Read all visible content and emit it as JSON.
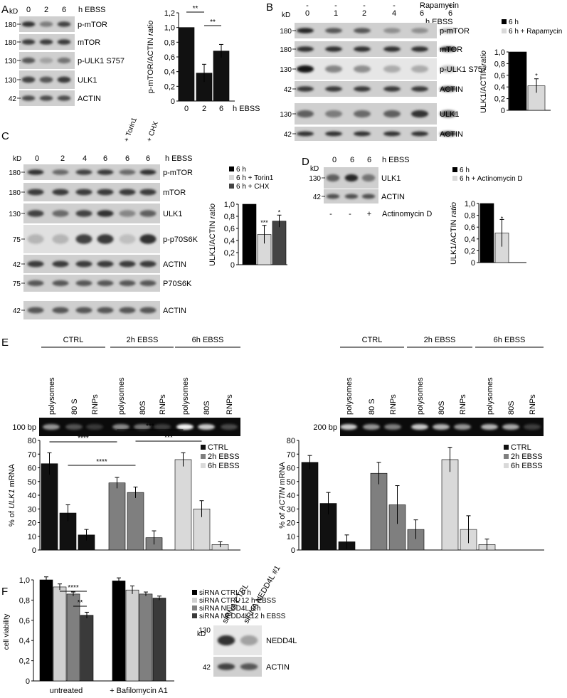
{
  "panelA": {
    "letter": "A",
    "kd": "kD",
    "lanes": [
      "0",
      "2",
      "6"
    ],
    "lane_header": "h EBSS",
    "markers": [
      "180",
      "180",
      "130",
      "130",
      "42"
    ],
    "blots": [
      "p-mTOR",
      "mTOR",
      "p-ULK1 S757",
      "ULK1",
      "ACTIN"
    ]
  },
  "panelB": {
    "letter": "B",
    "kd": "kD",
    "rapa_label": "Rapamycin",
    "rapa_marks": [
      "-",
      "-",
      "-",
      "-",
      "-",
      "+"
    ],
    "lanes": [
      "0",
      "1",
      "2",
      "4",
      "6",
      "6"
    ],
    "lane_header": "h EBSS",
    "markers": [
      "180",
      "180",
      "130",
      "42",
      "130",
      "42"
    ],
    "blots": [
      "p-mTOR",
      "mTOR",
      "p-ULK1 S757",
      "ACTIN",
      "ULK1",
      "ACTIN"
    ],
    "legend": [
      "6 h",
      "6 h + Rapamycin"
    ]
  },
  "panelC": {
    "letter": "C",
    "kd": "kD",
    "treat_labels": [
      "+ Torin1",
      "+ CHX"
    ],
    "lanes": [
      "0",
      "2",
      "4",
      "6",
      "6",
      "6"
    ],
    "lane_header": "h EBSS",
    "markers": [
      "180",
      "180",
      "130",
      "75",
      "42",
      "75",
      "42"
    ],
    "blots": [
      "p-mTOR",
      "mTOR",
      "ULK1",
      "p-p70S6K",
      "ACTIN",
      "P70S6K",
      "ACTIN"
    ],
    "legend": [
      "6 h",
      "6 h + Torin1",
      "6 h + CHX"
    ]
  },
  "panelD": {
    "letter": "D",
    "kd": "kD",
    "lanes": [
      "0",
      "6",
      "6"
    ],
    "lane_header": "h EBSS",
    "markers": [
      "130",
      "42"
    ],
    "blots": [
      "ULK1",
      "ACTIN"
    ],
    "actd_marks": [
      "-",
      "-",
      "+"
    ],
    "actd_label": "Actinomycin D",
    "legend": [
      "6 h",
      "6 h + Actinomycin D"
    ]
  },
  "panelE": {
    "letter": "E",
    "groups": [
      "CTRL",
      "2h EBSS",
      "6h EBSS"
    ],
    "left_fractions": [
      "polysomes",
      "80 S",
      "RNPs",
      "polysomes",
      "80S",
      "RNPs",
      "polysomes",
      "80S",
      "RNPs"
    ],
    "right_fractions": [
      "polysomes",
      "80 S",
      "RNPs",
      "polysomes",
      "80S",
      "RNPs",
      "polysomes",
      "80S",
      "RNPs"
    ],
    "left_marker": "100 bp",
    "right_marker": "200 bp",
    "legend": [
      "CTRL",
      "2h EBSS",
      "6h EBSS"
    ]
  },
  "panelF": {
    "letter": "F",
    "legend": [
      "siRNA CTRL 0 h",
      "siRNA CTRL 12 h EBSS",
      "siRNA NEDD4L 0 h",
      "siRNA NEDD4L 12 h EBSS"
    ],
    "kd": "kD",
    "lanes": [
      "siRNA CTRL",
      "siRNA NEDD4L #1"
    ],
    "markers": [
      "130",
      "42"
    ],
    "blots": [
      "NEDD4L",
      "ACTIN"
    ]
  },
  "chart_data": [
    {
      "id": "A",
      "type": "bar",
      "categories": [
        "0",
        "2",
        "6"
      ],
      "values": [
        1.0,
        0.38,
        0.68
      ],
      "errors": [
        0.0,
        0.12,
        0.09
      ],
      "ylabel_main": "p-mTOR/ACTIN",
      "ylabel_italic": "ratio",
      "xlabel": "h EBSS",
      "ylim": [
        0,
        1.2
      ],
      "yticks": [
        "0",
        "0,2",
        "0,4",
        "0,6",
        "0,8",
        "1,0",
        "1,2"
      ],
      "significance": [
        "**",
        "**"
      ],
      "colors": [
        "#111111",
        "#111111",
        "#111111"
      ]
    },
    {
      "id": "B",
      "type": "bar",
      "categories": [
        "6 h",
        "6 h + Rapamycin"
      ],
      "values": [
        1.0,
        0.42
      ],
      "errors": [
        0.0,
        0.12
      ],
      "ylabel_main": "ULK1/ACTIN",
      "ylabel_italic": "ratio",
      "ylim": [
        0,
        1.0
      ],
      "yticks": [
        "0",
        "0,2",
        "0,4",
        "0,6",
        "0,8",
        "1,0"
      ],
      "significance": [
        "*"
      ],
      "colors": [
        "#000000",
        "#d9d9d9"
      ]
    },
    {
      "id": "C",
      "type": "bar",
      "categories": [
        "6 h",
        "6 h + Torin1",
        "6 h + CHX"
      ],
      "values": [
        1.0,
        0.5,
        0.72
      ],
      "errors": [
        0.0,
        0.15,
        0.1
      ],
      "ylabel_main": "ULK1/ACTIN",
      "ylabel_italic": "ratio",
      "ylim": [
        0,
        1.0
      ],
      "yticks": [
        "0",
        "0,2",
        "0,4",
        "0,6",
        "0,8",
        "1,0"
      ],
      "significance": [
        "***",
        "*"
      ],
      "colors": [
        "#000000",
        "#d9d9d9",
        "#444444"
      ]
    },
    {
      "id": "D",
      "type": "bar",
      "categories": [
        "6 h",
        "6 h + Actinomycin D"
      ],
      "values": [
        1.0,
        0.5
      ],
      "errors": [
        0.0,
        0.23
      ],
      "ylabel_main": "ULK1/ACTIN",
      "ylabel_italic": "ratio",
      "ylim": [
        0,
        1.0
      ],
      "yticks": [
        "0",
        "0,2",
        "0,4",
        "0,6",
        "0,8",
        "1,0"
      ],
      "significance": [
        "*"
      ],
      "colors": [
        "#000000",
        "#d9d9d9"
      ]
    },
    {
      "id": "E-left",
      "type": "bar",
      "groups": [
        "CTRL",
        "2h EBSS",
        "6h EBSS"
      ],
      "values": [
        [
          63,
          27,
          11
        ],
        [
          49,
          42,
          9
        ],
        [
          66,
          30,
          4
        ]
      ],
      "errors": [
        [
          8,
          6,
          4
        ],
        [
          4,
          4,
          5
        ],
        [
          5,
          6,
          2
        ]
      ],
      "ylabel_pre": "% of ",
      "ylabel_italic": "ULK1",
      "ylabel_post": " mRNA",
      "ylim": [
        0,
        80
      ],
      "yticks": [
        "0",
        "10",
        "20",
        "30",
        "40",
        "50",
        "60",
        "70",
        "80"
      ],
      "significance": [
        "****",
        "****",
        "***",
        "***"
      ],
      "colors": [
        "#111111",
        "#7f7f7f",
        "#d9d9d9"
      ]
    },
    {
      "id": "E-right",
      "type": "bar",
      "groups": [
        "CTRL",
        "2h EBSS",
        "6h EBSS"
      ],
      "values": [
        [
          64,
          34,
          6
        ],
        [
          56,
          33,
          15
        ],
        [
          66,
          15,
          4
        ]
      ],
      "errors": [
        [
          5,
          8,
          5
        ],
        [
          8,
          14,
          7
        ],
        [
          9,
          10,
          4
        ]
      ],
      "ylabel_pre": "% of ",
      "ylabel_italic": "ACTIN",
      "ylabel_post": " mRNA",
      "ylim": [
        0,
        80
      ],
      "yticks": [
        "0",
        "10",
        "20",
        "30",
        "40",
        "50",
        "60",
        "70",
        "80"
      ],
      "colors": [
        "#111111",
        "#7f7f7f",
        "#d9d9d9"
      ]
    },
    {
      "id": "F",
      "type": "bar",
      "groups": [
        "untreated",
        "+ Bafilomycin A1"
      ],
      "values": [
        [
          1.0,
          0.93,
          0.86,
          0.65
        ],
        [
          0.99,
          0.9,
          0.86,
          0.82
        ]
      ],
      "errors": [
        [
          0.03,
          0.03,
          0.02,
          0.03
        ],
        [
          0.03,
          0.04,
          0.02,
          0.02
        ]
      ],
      "ylabel": "cell viability",
      "ylim": [
        0,
        1.0
      ],
      "yticks": [
        "0",
        "0,2",
        "0,4",
        "0,6",
        "0,8",
        "1,0"
      ],
      "significance": [
        "****",
        "**"
      ],
      "colors": [
        "#000000",
        "#d0d0d0",
        "#7f7f7f",
        "#3a3a3a"
      ]
    }
  ]
}
